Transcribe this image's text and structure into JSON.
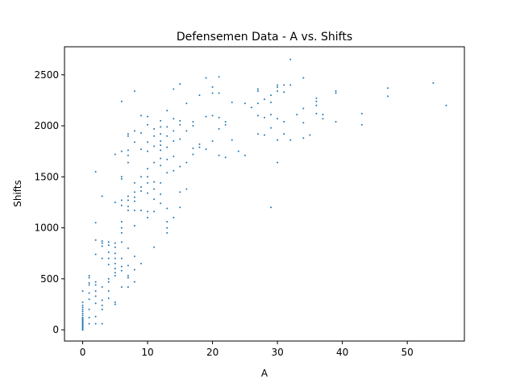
{
  "chart_data": {
    "type": "scatter",
    "title": "Defensemen Data - A vs. Shifts",
    "xlabel": "A",
    "ylabel": "Shifts",
    "xlim": [
      -2.8,
      58.8
    ],
    "ylim": [
      -110,
      2775
    ],
    "xticks": [
      0,
      10,
      20,
      30,
      40,
      50
    ],
    "yticks": [
      0,
      500,
      1000,
      1500,
      2000,
      2500
    ],
    "grid": false,
    "legend": "none",
    "marker_color": "#1f77b4",
    "series": [
      {
        "points": [
          [
            0,
            0
          ],
          [
            0,
            10
          ],
          [
            0,
            20
          ],
          [
            0,
            30
          ],
          [
            0,
            40
          ],
          [
            0,
            50
          ],
          [
            0,
            60
          ],
          [
            0,
            70
          ],
          [
            0,
            80
          ],
          [
            0,
            90
          ],
          [
            0,
            100
          ],
          [
            0,
            110
          ],
          [
            0,
            120
          ],
          [
            0,
            140
          ],
          [
            0,
            160
          ],
          [
            0,
            180
          ],
          [
            0,
            200
          ],
          [
            0,
            220
          ],
          [
            0,
            240
          ],
          [
            0,
            270
          ],
          [
            0,
            380
          ],
          [
            1,
            60
          ],
          [
            1,
            120
          ],
          [
            1,
            200
          ],
          [
            1,
            300
          ],
          [
            1,
            360
          ],
          [
            1,
            440
          ],
          [
            1,
            460
          ],
          [
            1,
            510
          ],
          [
            1,
            530
          ],
          [
            2,
            60
          ],
          [
            2,
            130
          ],
          [
            2,
            260
          ],
          [
            2,
            330
          ],
          [
            2,
            380
          ],
          [
            2,
            440
          ],
          [
            2,
            470
          ],
          [
            2,
            740
          ],
          [
            2,
            880
          ],
          [
            2,
            1050
          ],
          [
            2,
            1550
          ],
          [
            3,
            60
          ],
          [
            3,
            200
          ],
          [
            3,
            240
          ],
          [
            3,
            290
          ],
          [
            3,
            420
          ],
          [
            3,
            700
          ],
          [
            3,
            820
          ],
          [
            3,
            850
          ],
          [
            3,
            870
          ],
          [
            3,
            1310
          ],
          [
            4,
            310
          ],
          [
            4,
            380
          ],
          [
            4,
            470
          ],
          [
            4,
            500
          ],
          [
            4,
            640
          ],
          [
            4,
            700
          ],
          [
            4,
            760
          ],
          [
            4,
            830
          ],
          [
            4,
            860
          ],
          [
            5,
            250
          ],
          [
            5,
            270
          ],
          [
            5,
            530
          ],
          [
            5,
            560
          ],
          [
            5,
            600
          ],
          [
            5,
            650
          ],
          [
            5,
            700
          ],
          [
            5,
            750
          ],
          [
            5,
            810
          ],
          [
            5,
            850
          ],
          [
            5,
            1250
          ],
          [
            5,
            1720
          ],
          [
            6,
            420
          ],
          [
            6,
            580
          ],
          [
            6,
            620
          ],
          [
            6,
            700
          ],
          [
            6,
            860
          ],
          [
            6,
            950
          ],
          [
            6,
            1000
          ],
          [
            6,
            1060
          ],
          [
            6,
            1220
          ],
          [
            6,
            1270
          ],
          [
            6,
            1480
          ],
          [
            6,
            1500
          ],
          [
            6,
            1750
          ],
          [
            6,
            2240
          ],
          [
            7,
            420
          ],
          [
            7,
            510
          ],
          [
            7,
            530
          ],
          [
            7,
            630
          ],
          [
            7,
            800
          ],
          [
            7,
            1170
          ],
          [
            7,
            1210
          ],
          [
            7,
            1270
          ],
          [
            7,
            1310
          ],
          [
            7,
            1640
          ],
          [
            7,
            1710
          ],
          [
            7,
            1760
          ],
          [
            7,
            1900
          ],
          [
            7,
            1920
          ],
          [
            8,
            470
          ],
          [
            8,
            590
          ],
          [
            8,
            720
          ],
          [
            8,
            1020
          ],
          [
            8,
            1170
          ],
          [
            8,
            1260
          ],
          [
            8,
            1300
          ],
          [
            8,
            1350
          ],
          [
            8,
            1440
          ],
          [
            8,
            1840
          ],
          [
            8,
            1950
          ],
          [
            8,
            2340
          ],
          [
            9,
            650
          ],
          [
            9,
            1170
          ],
          [
            9,
            1360
          ],
          [
            9,
            1400
          ],
          [
            9,
            1500
          ],
          [
            9,
            1770
          ],
          [
            9,
            1930
          ],
          [
            9,
            2100
          ],
          [
            10,
            1100
          ],
          [
            10,
            1160
          ],
          [
            10,
            1340
          ],
          [
            10,
            1440
          ],
          [
            10,
            1500
          ],
          [
            10,
            1580
          ],
          [
            10,
            1750
          ],
          [
            10,
            1840
          ],
          [
            10,
            2010
          ],
          [
            10,
            2090
          ],
          [
            11,
            810
          ],
          [
            11,
            1160
          ],
          [
            11,
            1280
          ],
          [
            11,
            1380
          ],
          [
            11,
            1450
          ],
          [
            11,
            1640
          ],
          [
            11,
            1800
          ],
          [
            11,
            1900
          ],
          [
            11,
            1970
          ],
          [
            12,
            1240
          ],
          [
            12,
            1330
          ],
          [
            12,
            1440
          ],
          [
            12,
            1610
          ],
          [
            12,
            1680
          ],
          [
            12,
            1760
          ],
          [
            12,
            1810
          ],
          [
            12,
            1850
          ],
          [
            12,
            1920
          ],
          [
            12,
            1990
          ],
          [
            12,
            2050
          ],
          [
            13,
            950
          ],
          [
            13,
            1000
          ],
          [
            13,
            1060
          ],
          [
            13,
            1190
          ],
          [
            13,
            1540
          ],
          [
            13,
            1670
          ],
          [
            13,
            1790
          ],
          [
            13,
            1900
          ],
          [
            13,
            1990
          ],
          [
            13,
            2150
          ],
          [
            14,
            1100
          ],
          [
            14,
            1560
          ],
          [
            14,
            1700
          ],
          [
            14,
            1850
          ],
          [
            14,
            1950
          ],
          [
            14,
            2070
          ],
          [
            14,
            2360
          ],
          [
            15,
            1200
          ],
          [
            15,
            1350
          ],
          [
            15,
            1600
          ],
          [
            15,
            1870
          ],
          [
            15,
            2010
          ],
          [
            15,
            2050
          ],
          [
            15,
            2410
          ],
          [
            16,
            1380
          ],
          [
            16,
            1640
          ],
          [
            16,
            1950
          ],
          [
            16,
            2220
          ],
          [
            17,
            1720
          ],
          [
            17,
            1780
          ],
          [
            17,
            2000
          ],
          [
            17,
            2040
          ],
          [
            18,
            1790
          ],
          [
            18,
            1820
          ],
          [
            18,
            2300
          ],
          [
            19,
            1770
          ],
          [
            19,
            2090
          ],
          [
            19,
            2470
          ],
          [
            20,
            1850
          ],
          [
            20,
            2100
          ],
          [
            20,
            2320
          ],
          [
            20,
            2380
          ],
          [
            21,
            1710
          ],
          [
            21,
            1970
          ],
          [
            21,
            2080
          ],
          [
            21,
            2320
          ],
          [
            21,
            2480
          ],
          [
            22,
            1690
          ],
          [
            22,
            2010
          ],
          [
            22,
            2040
          ],
          [
            23,
            1860
          ],
          [
            23,
            2230
          ],
          [
            24,
            1750
          ],
          [
            25,
            1710
          ],
          [
            25,
            2220
          ],
          [
            26,
            2180
          ],
          [
            27,
            1920
          ],
          [
            27,
            2100
          ],
          [
            27,
            2220
          ],
          [
            27,
            2340
          ],
          [
            27,
            2360
          ],
          [
            28,
            1910
          ],
          [
            28,
            2080
          ],
          [
            28,
            2260
          ],
          [
            29,
            1200
          ],
          [
            29,
            1980
          ],
          [
            29,
            2110
          ],
          [
            29,
            2230
          ],
          [
            29,
            2300
          ],
          [
            30,
            1640
          ],
          [
            30,
            1860
          ],
          [
            30,
            2070
          ],
          [
            30,
            2340
          ],
          [
            30,
            2380
          ],
          [
            30,
            2400
          ],
          [
            31,
            1920
          ],
          [
            31,
            2040
          ],
          [
            31,
            2330
          ],
          [
            31,
            2400
          ],
          [
            32,
            1860
          ],
          [
            32,
            2400
          ],
          [
            32,
            2650
          ],
          [
            33,
            2110
          ],
          [
            34,
            1880
          ],
          [
            34,
            2030
          ],
          [
            34,
            2170
          ],
          [
            34,
            2470
          ],
          [
            35,
            1910
          ],
          [
            36,
            2120
          ],
          [
            36,
            2200
          ],
          [
            36,
            2240
          ],
          [
            36,
            2270
          ],
          [
            37,
            2070
          ],
          [
            37,
            2110
          ],
          [
            39,
            2040
          ],
          [
            39,
            2320
          ],
          [
            39,
            2340
          ],
          [
            43,
            2010
          ],
          [
            43,
            2120
          ],
          [
            47,
            2290
          ],
          [
            47,
            2370
          ],
          [
            54,
            2420
          ],
          [
            56,
            2200
          ]
        ]
      }
    ]
  }
}
